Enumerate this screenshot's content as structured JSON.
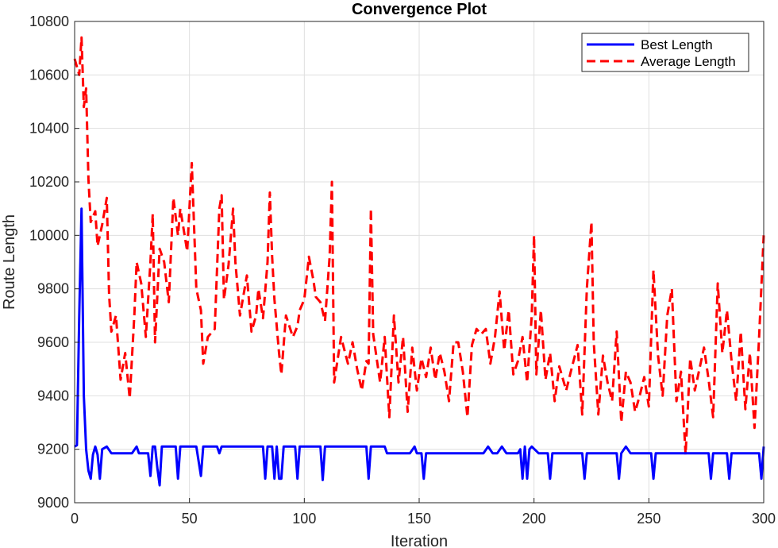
{
  "chart_data": {
    "type": "line",
    "title": "Convergence Plot",
    "xlabel": "Iteration",
    "ylabel": "Route Length",
    "xlim": [
      0,
      300
    ],
    "ylim": [
      9000,
      10800
    ],
    "xticks": [
      0,
      50,
      100,
      150,
      200,
      250,
      300
    ],
    "yticks": [
      9000,
      9200,
      9400,
      9600,
      9800,
      10000,
      10200,
      10400,
      10600,
      10800
    ],
    "grid": true,
    "legend_position": "top-right",
    "series": [
      {
        "name": "Best Length",
        "color": "#0000ff",
        "style": "solid",
        "points": [
          [
            0,
            9210
          ],
          [
            1,
            9215
          ],
          [
            2,
            9700
          ],
          [
            3,
            10100
          ],
          [
            4,
            9400
          ],
          [
            5,
            9200
          ],
          [
            6,
            9120
          ],
          [
            7,
            9090
          ],
          [
            8,
            9180
          ],
          [
            9,
            9210
          ],
          [
            10,
            9180
          ],
          [
            11,
            9090
          ],
          [
            12,
            9200
          ],
          [
            14,
            9210
          ],
          [
            16,
            9185
          ],
          [
            20,
            9185
          ],
          [
            25,
            9185
          ],
          [
            27,
            9210
          ],
          [
            28,
            9185
          ],
          [
            32,
            9185
          ],
          [
            33,
            9100
          ],
          [
            34,
            9210
          ],
          [
            35,
            9210
          ],
          [
            36,
            9130
          ],
          [
            37,
            9065
          ],
          [
            38,
            9210
          ],
          [
            44,
            9210
          ],
          [
            45,
            9090
          ],
          [
            46,
            9210
          ],
          [
            53,
            9210
          ],
          [
            55,
            9100
          ],
          [
            56,
            9210
          ],
          [
            62,
            9210
          ],
          [
            63,
            9185
          ],
          [
            64,
            9210
          ],
          [
            82,
            9210
          ],
          [
            83,
            9090
          ],
          [
            84,
            9210
          ],
          [
            86,
            9210
          ],
          [
            87,
            9090
          ],
          [
            88,
            9210
          ],
          [
            89,
            9090
          ],
          [
            90,
            9090
          ],
          [
            91,
            9210
          ],
          [
            96,
            9210
          ],
          [
            97,
            9090
          ],
          [
            98,
            9210
          ],
          [
            107,
            9210
          ],
          [
            108,
            9085
          ],
          [
            109,
            9210
          ],
          [
            127,
            9210
          ],
          [
            128,
            9090
          ],
          [
            129,
            9210
          ],
          [
            135,
            9210
          ],
          [
            136,
            9185
          ],
          [
            146,
            9185
          ],
          [
            148,
            9210
          ],
          [
            149,
            9185
          ],
          [
            151,
            9185
          ],
          [
            152,
            9090
          ],
          [
            153,
            9185
          ],
          [
            178,
            9185
          ],
          [
            180,
            9210
          ],
          [
            182,
            9185
          ],
          [
            184,
            9185
          ],
          [
            186,
            9210
          ],
          [
            188,
            9185
          ],
          [
            193,
            9185
          ],
          [
            194,
            9200
          ],
          [
            195,
            9090
          ],
          [
            196,
            9210
          ],
          [
            197,
            9090
          ],
          [
            198,
            9200
          ],
          [
            199,
            9210
          ],
          [
            202,
            9185
          ],
          [
            206,
            9185
          ],
          [
            207,
            9090
          ],
          [
            208,
            9185
          ],
          [
            221,
            9185
          ],
          [
            222,
            9090
          ],
          [
            223,
            9185
          ],
          [
            236,
            9185
          ],
          [
            237,
            9090
          ],
          [
            238,
            9185
          ],
          [
            240,
            9210
          ],
          [
            242,
            9185
          ],
          [
            251,
            9185
          ],
          [
            252,
            9090
          ],
          [
            253,
            9185
          ],
          [
            276,
            9185
          ],
          [
            277,
            9090
          ],
          [
            278,
            9185
          ],
          [
            284,
            9185
          ],
          [
            285,
            9090
          ],
          [
            286,
            9185
          ],
          [
            298,
            9185
          ],
          [
            299,
            9090
          ],
          [
            300,
            9210
          ]
        ]
      },
      {
        "name": "Average Length",
        "color": "#ff0000",
        "style": "dashed",
        "points": [
          [
            0,
            10660
          ],
          [
            2,
            10600
          ],
          [
            3,
            10740
          ],
          [
            4,
            10480
          ],
          [
            5,
            10550
          ],
          [
            6,
            10210
          ],
          [
            7,
            10050
          ],
          [
            9,
            10090
          ],
          [
            10,
            9960
          ],
          [
            12,
            10040
          ],
          [
            14,
            10140
          ],
          [
            15,
            9780
          ],
          [
            16,
            9640
          ],
          [
            18,
            9700
          ],
          [
            20,
            9460
          ],
          [
            22,
            9560
          ],
          [
            24,
            9390
          ],
          [
            26,
            9700
          ],
          [
            27,
            9900
          ],
          [
            29,
            9820
          ],
          [
            31,
            9620
          ],
          [
            33,
            9900
          ],
          [
            34,
            10080
          ],
          [
            35,
            9600
          ],
          [
            37,
            9950
          ],
          [
            39,
            9900
          ],
          [
            41,
            9750
          ],
          [
            43,
            10140
          ],
          [
            45,
            10000
          ],
          [
            46,
            10100
          ],
          [
            49,
            9940
          ],
          [
            51,
            10270
          ],
          [
            53,
            9800
          ],
          [
            55,
            9720
          ],
          [
            56,
            9520
          ],
          [
            58,
            9620
          ],
          [
            61,
            9650
          ],
          [
            63,
            10100
          ],
          [
            64,
            10150
          ],
          [
            65,
            9760
          ],
          [
            67,
            9890
          ],
          [
            69,
            10100
          ],
          [
            70,
            9900
          ],
          [
            72,
            9700
          ],
          [
            75,
            9850
          ],
          [
            77,
            9640
          ],
          [
            79,
            9700
          ],
          [
            80,
            9800
          ],
          [
            82,
            9690
          ],
          [
            84,
            9900
          ],
          [
            85,
            10160
          ],
          [
            86,
            9920
          ],
          [
            87,
            9760
          ],
          [
            89,
            9560
          ],
          [
            90,
            9480
          ],
          [
            92,
            9700
          ],
          [
            95,
            9620
          ],
          [
            97,
            9660
          ],
          [
            98,
            9720
          ],
          [
            100,
            9760
          ],
          [
            102,
            9920
          ],
          [
            104,
            9830
          ],
          [
            105,
            9770
          ],
          [
            107,
            9750
          ],
          [
            109,
            9680
          ],
          [
            111,
            9920
          ],
          [
            112,
            10200
          ],
          [
            113,
            9450
          ],
          [
            116,
            9620
          ],
          [
            119,
            9520
          ],
          [
            121,
            9600
          ],
          [
            123,
            9500
          ],
          [
            125,
            9420
          ],
          [
            127,
            9530
          ],
          [
            128,
            9520
          ],
          [
            129,
            10100
          ],
          [
            130,
            9630
          ],
          [
            133,
            9450
          ],
          [
            135,
            9620
          ],
          [
            137,
            9320
          ],
          [
            139,
            9700
          ],
          [
            141,
            9450
          ],
          [
            143,
            9620
          ],
          [
            145,
            9340
          ],
          [
            147,
            9580
          ],
          [
            149,
            9420
          ],
          [
            151,
            9540
          ],
          [
            153,
            9470
          ],
          [
            155,
            9580
          ],
          [
            157,
            9460
          ],
          [
            159,
            9560
          ],
          [
            161,
            9490
          ],
          [
            163,
            9380
          ],
          [
            165,
            9600
          ],
          [
            167,
            9600
          ],
          [
            169,
            9490
          ],
          [
            171,
            9320
          ],
          [
            173,
            9590
          ],
          [
            175,
            9650
          ],
          [
            177,
            9630
          ],
          [
            179,
            9650
          ],
          [
            181,
            9520
          ],
          [
            183,
            9620
          ],
          [
            185,
            9790
          ],
          [
            187,
            9570
          ],
          [
            189,
            9720
          ],
          [
            191,
            9480
          ],
          [
            193,
            9530
          ],
          [
            195,
            9620
          ],
          [
            197,
            9450
          ],
          [
            199,
            9700
          ],
          [
            200,
            10000
          ],
          [
            201,
            9480
          ],
          [
            203,
            9720
          ],
          [
            205,
            9460
          ],
          [
            207,
            9560
          ],
          [
            209,
            9380
          ],
          [
            211,
            9510
          ],
          [
            214,
            9420
          ],
          [
            216,
            9490
          ],
          [
            219,
            9590
          ],
          [
            221,
            9330
          ],
          [
            223,
            9800
          ],
          [
            225,
            10050
          ],
          [
            226,
            9600
          ],
          [
            228,
            9330
          ],
          [
            230,
            9550
          ],
          [
            232,
            9450
          ],
          [
            234,
            9380
          ],
          [
            236,
            9640
          ],
          [
            238,
            9300
          ],
          [
            240,
            9490
          ],
          [
            242,
            9450
          ],
          [
            244,
            9340
          ],
          [
            246,
            9400
          ],
          [
            248,
            9470
          ],
          [
            250,
            9360
          ],
          [
            252,
            9870
          ],
          [
            254,
            9550
          ],
          [
            256,
            9400
          ],
          [
            258,
            9700
          ],
          [
            260,
            9800
          ],
          [
            262,
            9380
          ],
          [
            264,
            9490
          ],
          [
            266,
            9180
          ],
          [
            268,
            9540
          ],
          [
            270,
            9420
          ],
          [
            272,
            9500
          ],
          [
            274,
            9580
          ],
          [
            276,
            9460
          ],
          [
            278,
            9320
          ],
          [
            280,
            9820
          ],
          [
            282,
            9560
          ],
          [
            284,
            9720
          ],
          [
            286,
            9530
          ],
          [
            288,
            9380
          ],
          [
            290,
            9640
          ],
          [
            292,
            9350
          ],
          [
            294,
            9560
          ],
          [
            296,
            9280
          ],
          [
            298,
            9620
          ],
          [
            300,
            10000
          ]
        ]
      }
    ]
  }
}
